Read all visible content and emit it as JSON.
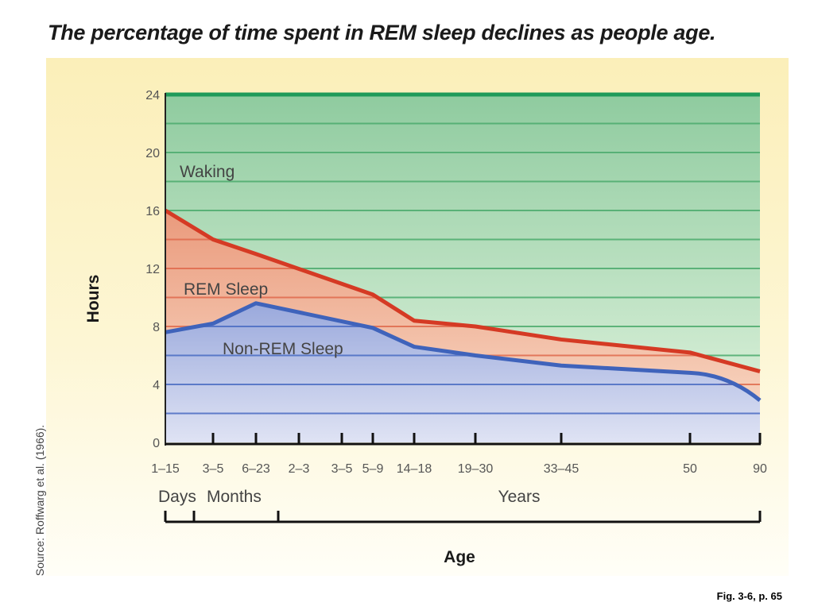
{
  "title": "The percentage of time spent in REM sleep declines as people age.",
  "source_note": "Source: Roffwarg et al. (1966).",
  "figure_ref": "Fig. 3-6, p. 65",
  "colors": {
    "waking_line": "#1f9b5a",
    "waking_fill_top": "#8fcb9f",
    "waking_fill_bottom": "#d2ecd3",
    "rem_line": "#d53a24",
    "rem_fill_top": "#ea9a7c",
    "rem_fill_bottom": "#f7d2bd",
    "nonrem_line": "#3f63bb",
    "nonrem_fill_top": "#9aa9dc",
    "nonrem_fill_bottom": "#dfe3f4",
    "grid_waking": "#4bab6d",
    "grid_rem": "#e06a4d",
    "grid_nonrem": "#4a6cc3"
  },
  "chart_data": {
    "type": "area",
    "ylabel": "Hours",
    "xlabel": "Age",
    "ylim": [
      0,
      24
    ],
    "yticks": [
      0,
      4,
      8,
      12,
      16,
      20,
      24
    ],
    "x_tick_labels": [
      "1–15",
      "3–5",
      "6–23",
      "2–3",
      "3–5",
      "5–9",
      "14–18",
      "19–30",
      "33–45",
      "50",
      "90"
    ],
    "x_unit_groups": [
      {
        "label": "Days",
        "from": "1–15",
        "to": "1–15"
      },
      {
        "label": "Months",
        "from": "3–5",
        "to": "6–23"
      },
      {
        "label": "Years",
        "from": "2–3",
        "to": "90"
      }
    ],
    "region_labels": [
      "Waking",
      "REM Sleep",
      "Non-REM Sleep"
    ],
    "series": [
      {
        "name": "Waking",
        "points": [
          [
            "1–15",
            24
          ],
          [
            "90",
            24
          ]
        ]
      },
      {
        "name": "REM Sleep",
        "points": [
          [
            "1–15",
            16
          ],
          [
            "3–5",
            14
          ],
          [
            "6–23",
            13
          ],
          [
            "5–9",
            10.2
          ],
          [
            "14–18",
            8.4
          ],
          [
            "19–30",
            8.0
          ],
          [
            "33–45",
            7.1
          ],
          [
            "50",
            6.2
          ],
          [
            "90",
            4.9
          ]
        ]
      },
      {
        "name": "Non-REM Sleep",
        "points": [
          [
            "1–15",
            7.6
          ],
          [
            "3–5",
            8.2
          ],
          [
            "6–23",
            9.6
          ],
          [
            "5–9",
            7.9
          ],
          [
            "14–18",
            6.6
          ],
          [
            "19–30",
            6.0
          ],
          [
            "33–45",
            5.3
          ],
          [
            "50",
            4.8
          ],
          [
            "90",
            2.9
          ]
        ]
      }
    ]
  }
}
